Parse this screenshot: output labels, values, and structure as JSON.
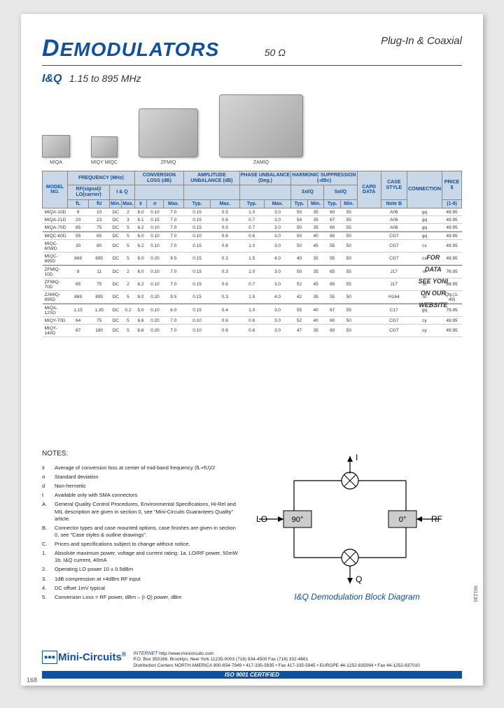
{
  "header": {
    "title_first": "D",
    "title_rest": "EMODULATORS",
    "impedance": "50 Ω",
    "type": "Plug-In & Coaxial"
  },
  "subhead": {
    "label": "I&Q",
    "range": "1.15 to 895 MHz"
  },
  "products": [
    {
      "label": "MIQA"
    },
    {
      "label": "MIQY\nMIQC"
    },
    {
      "label": "ZFMIQ"
    },
    {
      "label": "ZAMIQ"
    }
  ],
  "table": {
    "group_headers": [
      "MODEL NO.",
      "FREQUENCY (MHz)",
      "CONVERSION LOSS (dB)",
      "AMPLITUDE UNBALANCE (dB)",
      "PHASE UNBALANCE (Deg.)",
      "HARMONIC SUPPRESSION (-dBc)",
      "CAPD DATA",
      "CASE STYLE",
      "CONNECTION",
      "PRICE $"
    ],
    "sub_headers_row1": [
      "",
      "RF(signal)/ LO(carrier)",
      "I & Q",
      "",
      "",
      "",
      "3xI/Q",
      "5xI/Q",
      "",
      "",
      "",
      "Qty."
    ],
    "sub_headers_row2": [
      "",
      "fL",
      "fU",
      "Min.",
      "Max.",
      "x̄",
      "σ",
      "Max.",
      "Typ.",
      "Max.",
      "Typ.",
      "Max.",
      "Typ.",
      "Min.",
      "Typ.",
      "Min.",
      "Note B",
      "",
      "",
      "(1-9)"
    ],
    "rows": [
      [
        "MIQA-10D",
        "9",
        "10",
        "DC",
        "2",
        "6.0",
        "0.10",
        "7.0",
        "0.15",
        "0.5",
        "1.0",
        "3.0",
        "50",
        "35",
        "60",
        "55",
        "",
        "A06",
        "gq",
        "49.95"
      ],
      [
        "MIQA-21D",
        "20",
        "23",
        "DC",
        "3",
        "6.1",
        "0.15",
        "7.0",
        "0.15",
        "0.6",
        "0.7",
        "3.0",
        "54",
        "35",
        "67",
        "55",
        "",
        "A06",
        "gq",
        "49.95"
      ],
      [
        "MIQA-70D",
        "65",
        "75",
        "DC",
        "5",
        "6.2",
        "0.10",
        "7.0",
        "0.15",
        "0.5",
        "0.7",
        "3.0",
        "50",
        "35",
        "60",
        "55",
        "",
        "A06",
        "gq",
        "49.95"
      ],
      [
        "MIQC-60D",
        "55",
        "65",
        "DC",
        "5",
        "6.0",
        "0.10",
        "7.0",
        "0.10",
        "0.6",
        "0.6",
        "3.0",
        "50",
        "40",
        "60",
        "50",
        "",
        "CG7",
        "gq",
        "49.95"
      ],
      [
        "MIQC-60WD",
        "30",
        "80",
        "DC",
        "5",
        "6.2",
        "0.10",
        "7.0",
        "0.15",
        "0.6",
        "1.0",
        "3.0",
        "50",
        "45",
        "55",
        "50",
        "",
        "CG7",
        "cx",
        "49.95"
      ],
      [
        "MIQC-895D",
        "869",
        "895",
        "DC",
        "5",
        "8.0",
        "0.20",
        "9.5",
        "0.15",
        "0.3",
        "1.5",
        "4.0",
        "40",
        "35",
        "55",
        "50",
        "",
        "CG7",
        "cx",
        "49.95"
      ],
      [
        "ZFMIQ-10D",
        "9",
        "11",
        "DC",
        "2",
        "6.0",
        "0.10",
        "7.0",
        "0.15",
        "0.3",
        "1.0",
        "3.0",
        "50",
        "35",
        "65",
        "55",
        "",
        "J17",
        "ot",
        "76.95"
      ],
      [
        "ZFMIQ-70D",
        "65",
        "75",
        "DC",
        "2",
        "6.2",
        "0.10",
        "7.0",
        "0.15",
        "0.6",
        "0.7",
        "3.0",
        "52",
        "45",
        "65",
        "55",
        "",
        "J17",
        "ot",
        "89.95"
      ],
      [
        "ZAMIQ-895D",
        "869",
        "895",
        "DC",
        "5",
        "8.0",
        "0.20",
        "9.5",
        "0.15",
        "0.3",
        "1.5",
        "4.0",
        "42",
        "35",
        "55",
        "50",
        "",
        "H164",
        "ot",
        "Qty.(1-49)"
      ],
      [
        "MIQA-12SD",
        "1.15",
        "1.35",
        "DC",
        "0.2",
        "5.0",
        "0.10",
        "6.0",
        "0.15",
        "0.4",
        "1.0",
        "3.0",
        "55",
        "40",
        "67",
        "55",
        "",
        "C17",
        "gq",
        "79.95"
      ],
      [
        "MIQY-70D",
        "64",
        "75",
        "DC",
        "5",
        "6.6",
        "0.20",
        "7.0",
        "0.10",
        "0.6",
        "0.6",
        "3.0",
        "52",
        "40",
        "60",
        "50",
        "",
        "CG7",
        "cy",
        "49.95"
      ],
      [
        "MIQY-140D",
        "87",
        "180",
        "DC",
        "5",
        "6.6",
        "0.20",
        "7.0",
        "0.10",
        "0.6",
        "0.6",
        "3.0",
        "47",
        "35",
        "60",
        "50",
        "",
        "CG7",
        "cy",
        "49.95"
      ]
    ]
  },
  "watermark": [
    "FOR",
    "DATA",
    "SEE YONI",
    "ON OUR",
    "WEBSITE"
  ],
  "notes": {
    "heading": "NOTES:",
    "items": [
      {
        "sym": "x̄",
        "text": "Average of conversion loss at center of mid-band frequency (fL+fU)/2"
      },
      {
        "sym": "σ",
        "text": "Standard deviation"
      },
      {
        "sym": "d",
        "text": "Non-hermetic"
      },
      {
        "sym": "t",
        "text": "Available only with SMA connectors"
      },
      {
        "sym": "A.",
        "text": "General Quality Control Procedures, Environmental Specifications, Hi-Rel and MIL description are given in section 0, see \"Mini-Circuits Guarantees Quality\" article."
      },
      {
        "sym": "B.",
        "text": "Connector types and case mounted options, case finishes are given in section 0, see \"Case styles & outline drawings\"."
      },
      {
        "sym": "C.",
        "text": "Prices and specifications subject to change without notice."
      },
      {
        "sym": "1.",
        "text": "Absolute maximum power, voltage and current rating:\n1a. LO/RF power, 50mW\n1b. I&Q current, 40mA"
      },
      {
        "sym": "2.",
        "text": "Operating LO power 10 ± 0.5dBm"
      },
      {
        "sym": "3.",
        "text": "1dB compression at +4dBm RF input"
      },
      {
        "sym": "4.",
        "text": "DC offset 1mV typical"
      },
      {
        "sym": "5.",
        "text": "Conversion Loss = RF power, dBm – (I·Q) power, dBm"
      }
    ]
  },
  "diagram": {
    "labels": {
      "I": "I",
      "Q": "Q",
      "LO": "LO",
      "RF": "RF",
      "b90": "90°",
      "b0": "0°"
    },
    "caption": "I&Q Demodulation Block Diagram"
  },
  "footer": {
    "logo": "Mini-Circuits",
    "reg": "®",
    "internet_label": "INTERNET",
    "internet_url": "http://www.minicircuits.com",
    "addr": "P.O. Box 350166, Brooklyn, New York 11235-0003  (718) 934-4500  Fax (718) 332-4661",
    "dist": "Distribution Centers  NORTH AMERICA  800-654-7949 • 417-335-5935 • Fax 417-335-5945 • EUROPE 44-1252-835094 • Fax 44-1252-837010",
    "iso": "ISO 9001 CERTIFIED"
  },
  "page_num": "168",
  "side_num": "991230"
}
